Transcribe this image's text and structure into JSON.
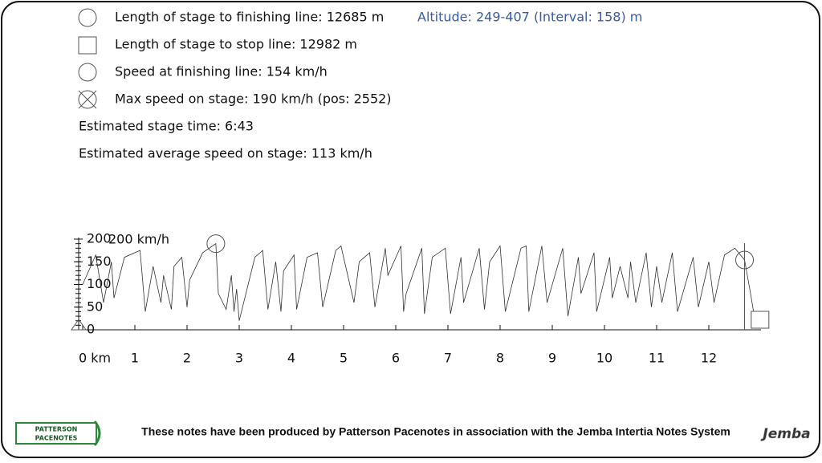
{
  "info": {
    "finish_length": "Length of stage to finishing line: 12685 m",
    "stop_length": "Length of stage to stop line: 12982 m",
    "finish_speed": "Speed at finishing line: 154 km/h",
    "max_speed": "Max speed on stage: 190 km/h (pos: 2552)",
    "stage_time": "Estimated stage time: 6:43",
    "avg_speed": "Estimated average speed on stage: 113 km/h",
    "altitude": "Altitude: 249-407 (Interval: 158) m"
  },
  "chart_data": {
    "type": "line",
    "y_label": "200 km/h",
    "color": "#333333",
    "x": [
      0,
      0.25,
      0.4,
      0.55,
      0.6,
      0.8,
      1.1,
      1.2,
      1.35,
      1.5,
      1.55,
      1.7,
      1.75,
      1.9,
      2.0,
      2.05,
      2.3,
      2.552,
      2.6,
      2.75,
      2.85,
      2.9,
      2.95,
      3.0,
      3.3,
      3.45,
      3.55,
      3.7,
      3.8,
      3.85,
      4.05,
      4.1,
      4.3,
      4.5,
      4.6,
      4.85,
      4.95,
      5.2,
      5.3,
      5.5,
      5.6,
      5.8,
      5.85,
      6.1,
      6.15,
      6.2,
      6.5,
      6.55,
      6.7,
      6.95,
      7.05,
      7.25,
      7.3,
      7.6,
      7.7,
      7.8,
      8.0,
      8.1,
      8.4,
      8.5,
      8.55,
      8.8,
      8.9,
      9.2,
      9.3,
      9.5,
      9.55,
      9.8,
      9.85,
      10.1,
      10.15,
      10.3,
      10.45,
      10.5,
      10.6,
      10.8,
      10.9,
      11.0,
      11.1,
      11.3,
      11.4,
      11.7,
      11.8,
      12.0,
      12.1,
      12.3,
      12.5,
      12.685,
      12.8,
      12.9
    ],
    "values": [
      100,
      165,
      60,
      150,
      70,
      160,
      175,
      40,
      140,
      60,
      120,
      45,
      140,
      160,
      50,
      110,
      170,
      190,
      80,
      45,
      120,
      40,
      90,
      20,
      160,
      175,
      45,
      150,
      40,
      130,
      165,
      45,
      160,
      170,
      50,
      175,
      185,
      60,
      150,
      170,
      50,
      180,
      120,
      185,
      40,
      80,
      180,
      35,
      160,
      180,
      35,
      160,
      60,
      180,
      45,
      150,
      185,
      40,
      180,
      185,
      40,
      185,
      60,
      180,
      30,
      160,
      80,
      170,
      40,
      160,
      70,
      140,
      70,
      150,
      60,
      170,
      50,
      140,
      60,
      170,
      40,
      160,
      50,
      150,
      60,
      165,
      180,
      154,
      80,
      10
    ],
    "xlim": [
      0,
      13
    ],
    "ylim": [
      0,
      200
    ],
    "xticks": [
      {
        "value": 0,
        "label": "0 km"
      },
      1,
      2,
      3,
      4,
      5,
      6,
      7,
      8,
      9,
      10,
      11,
      12
    ],
    "yticks": [
      0,
      50,
      100,
      150,
      200
    ],
    "markers": {
      "max_speed": {
        "x": 2.552,
        "y": 190
      },
      "finish": {
        "x": 12.685,
        "y": 154
      },
      "stop": {
        "x": 12.982
      }
    }
  },
  "footer": {
    "notice": "These notes have been produced by Patterson Pacenotes in association with the Jemba Intertia Notes System",
    "logo_top": "PATTERSON",
    "logo_bottom": "PACENOTES",
    "jemba": "Jemba"
  }
}
